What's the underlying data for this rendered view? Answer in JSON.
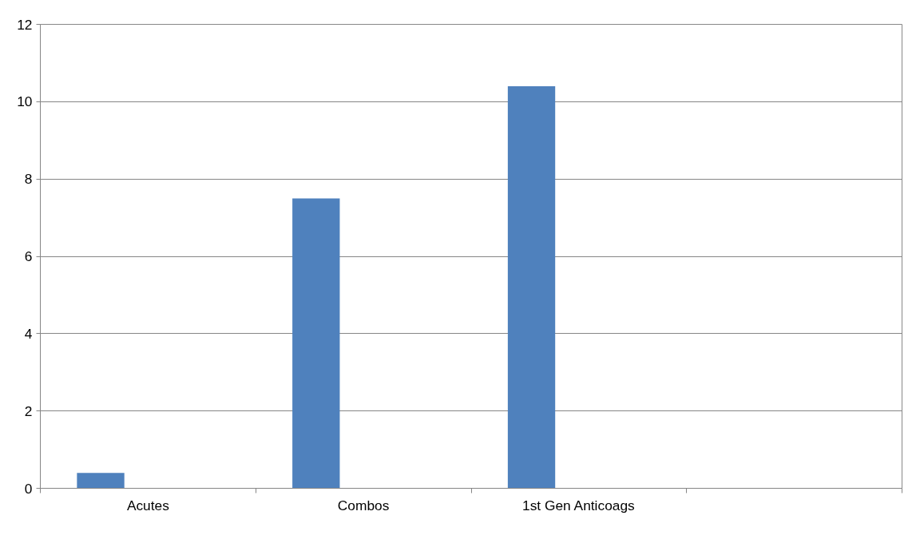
{
  "chart_data": {
    "type": "bar",
    "categories": [
      "Acutes",
      "Combos",
      "1st Gen Anticoags",
      null
    ],
    "series": [
      {
        "color": "#4f81bd",
        "values": [
          0.4,
          7.5,
          10.4,
          null
        ]
      }
    ],
    "ylim": [
      0,
      12
    ],
    "yticks": [
      0,
      2,
      4,
      6,
      8,
      10,
      12
    ],
    "grid": "y"
  }
}
